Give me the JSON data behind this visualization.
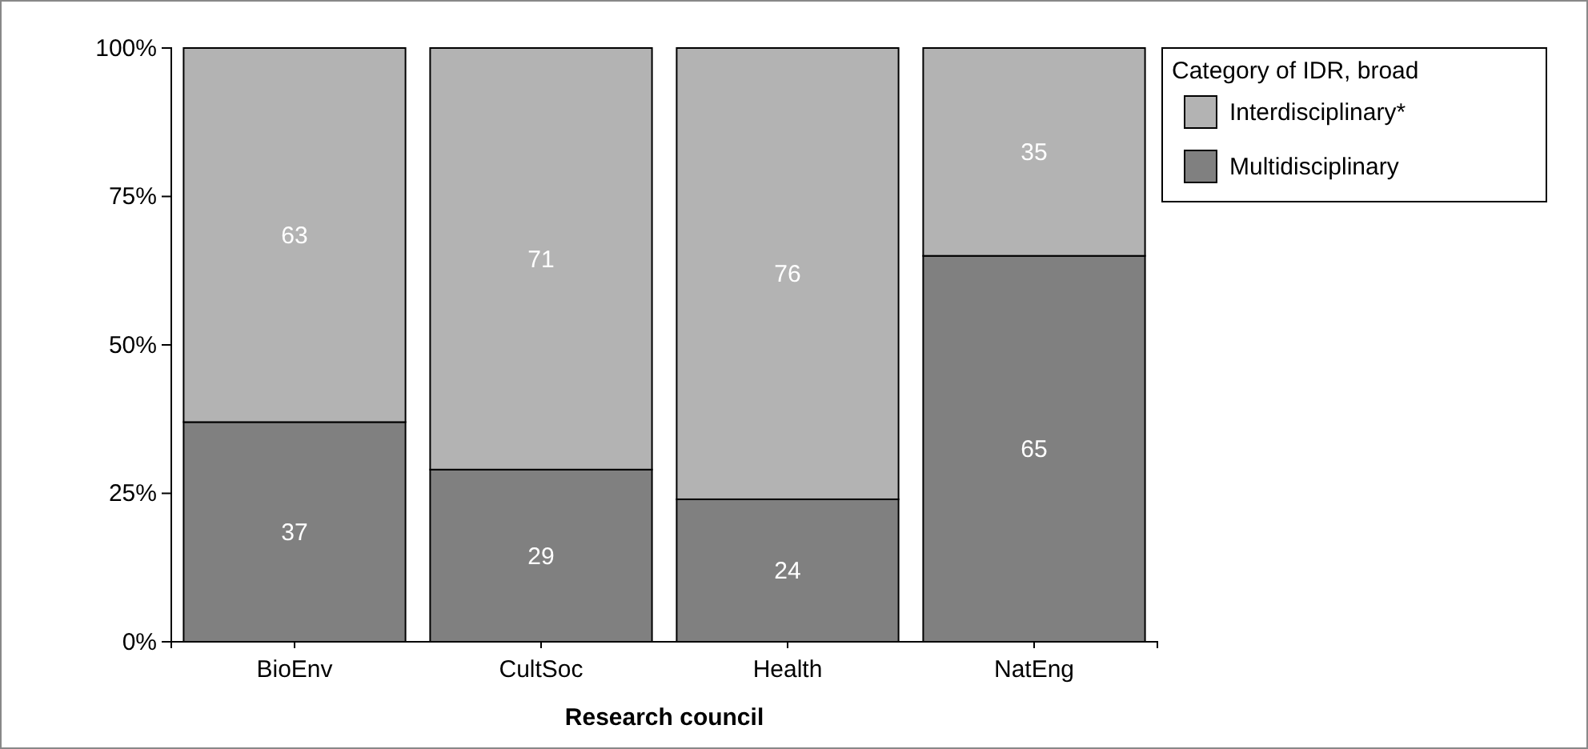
{
  "chart_data": {
    "type": "bar",
    "stacked": true,
    "xlabel": "Research council",
    "legend_title": "Category of IDR, broad",
    "legend": "top right",
    "categories": [
      "BioEnv",
      "CultSoc",
      "Health",
      "NatEng"
    ],
    "series": [
      {
        "name": "Multidisciplinary",
        "color": "#808080",
        "values": [
          37,
          29,
          24,
          65
        ]
      },
      {
        "name": "Interdisciplinary*",
        "color": "#b3b3b3",
        "values": [
          63,
          71,
          76,
          35
        ]
      }
    ],
    "ylim": [
      0,
      100
    ],
    "yticks": [
      {
        "value": 0,
        "label": "0%"
      },
      {
        "value": 25,
        "label": "25%"
      },
      {
        "value": 50,
        "label": "50%"
      },
      {
        "value": 75,
        "label": "75%"
      },
      {
        "value": 100,
        "label": "100%"
      }
    ],
    "data_labels": true,
    "grid": false
  }
}
